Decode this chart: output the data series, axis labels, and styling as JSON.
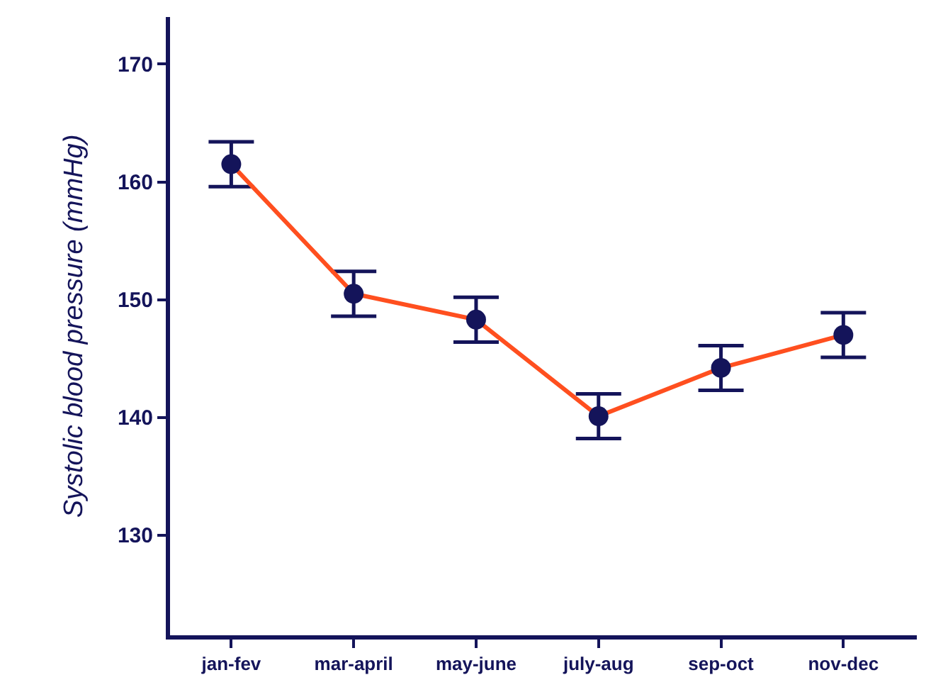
{
  "chart_data": {
    "type": "line",
    "ylabel": "Systolic blood pressure (mmHg)",
    "categories": [
      "jan-fev",
      "mar-april",
      "may-june",
      "july-aug",
      "sep-oct",
      "nov-dec"
    ],
    "series": [
      {
        "color": "#ff4f1f",
        "values": [
          161.5,
          150.5,
          148.3,
          140.1,
          144.2,
          147.0
        ],
        "errors": [
          1.9,
          1.9,
          1.9,
          1.9,
          1.9,
          1.9
        ]
      }
    ],
    "ylim": [
      121.5,
      174
    ],
    "yticks": [
      130,
      140,
      150,
      160,
      170
    ],
    "grid": false,
    "marker": "circle",
    "line_style": "solid"
  }
}
